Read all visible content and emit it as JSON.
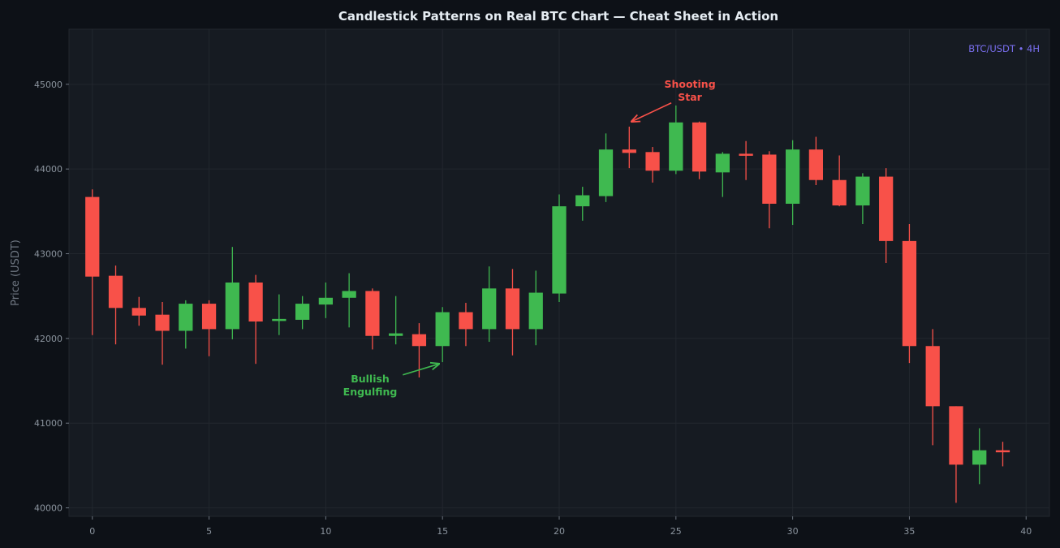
{
  "chart_data": {
    "type": "candlestick",
    "title": "Candlestick Patterns on Real BTC Chart — Cheat Sheet in Action",
    "ylabel": "Price (USDT)",
    "xlabel": "",
    "badge": "BTC/USDT • 4H",
    "xlim": [
      -1,
      41
    ],
    "ylim": [
      39900,
      45650
    ],
    "xticks": [
      0,
      5,
      10,
      15,
      20,
      25,
      30,
      35,
      40
    ],
    "yticks": [
      40000,
      41000,
      42000,
      43000,
      44000,
      45000
    ],
    "grid": true,
    "colors": {
      "up": "#3fb950",
      "down": "#f85149",
      "background": "#161b22",
      "page": "#0d1117",
      "badge": "#7a6ff0"
    },
    "candles": [
      {
        "x": 0,
        "o": 43670,
        "h": 43760,
        "l": 42040,
        "c": 42730
      },
      {
        "x": 1,
        "o": 42740,
        "h": 42860,
        "l": 41930,
        "c": 42360
      },
      {
        "x": 2,
        "o": 42360,
        "h": 42490,
        "l": 42150,
        "c": 42270
      },
      {
        "x": 3,
        "o": 42280,
        "h": 42430,
        "l": 41690,
        "c": 42090
      },
      {
        "x": 4,
        "o": 42090,
        "h": 42450,
        "l": 41880,
        "c": 42410
      },
      {
        "x": 5,
        "o": 42410,
        "h": 42450,
        "l": 41790,
        "c": 42110
      },
      {
        "x": 6,
        "o": 42110,
        "h": 43080,
        "l": 41990,
        "c": 42660
      },
      {
        "x": 7,
        "o": 42660,
        "h": 42750,
        "l": 41700,
        "c": 42200
      },
      {
        "x": 8,
        "o": 42210,
        "h": 42520,
        "l": 42040,
        "c": 42230
      },
      {
        "x": 9,
        "o": 42220,
        "h": 42500,
        "l": 42110,
        "c": 42410
      },
      {
        "x": 10,
        "o": 42400,
        "h": 42660,
        "l": 42240,
        "c": 42480
      },
      {
        "x": 11,
        "o": 42480,
        "h": 42770,
        "l": 42130,
        "c": 42560
      },
      {
        "x": 12,
        "o": 42560,
        "h": 42590,
        "l": 41870,
        "c": 42030
      },
      {
        "x": 13,
        "o": 42030,
        "h": 42500,
        "l": 41930,
        "c": 42060
      },
      {
        "x": 14,
        "o": 42050,
        "h": 42180,
        "l": 41540,
        "c": 41910
      },
      {
        "x": 15,
        "o": 41910,
        "h": 42370,
        "l": 41720,
        "c": 42310
      },
      {
        "x": 16,
        "o": 42310,
        "h": 42420,
        "l": 41910,
        "c": 42110
      },
      {
        "x": 17,
        "o": 42110,
        "h": 42850,
        "l": 41960,
        "c": 42590
      },
      {
        "x": 18,
        "o": 42590,
        "h": 42820,
        "l": 41800,
        "c": 42110
      },
      {
        "x": 19,
        "o": 42110,
        "h": 42800,
        "l": 41920,
        "c": 42540
      },
      {
        "x": 20,
        "o": 42530,
        "h": 43700,
        "l": 42430,
        "c": 43560
      },
      {
        "x": 21,
        "o": 43560,
        "h": 43790,
        "l": 43390,
        "c": 43690
      },
      {
        "x": 22,
        "o": 43680,
        "h": 44420,
        "l": 43610,
        "c": 44230
      },
      {
        "x": 23,
        "o": 44230,
        "h": 44500,
        "l": 44010,
        "c": 44190
      },
      {
        "x": 24,
        "o": 44200,
        "h": 44260,
        "l": 43840,
        "c": 43980
      },
      {
        "x": 25,
        "o": 43980,
        "h": 44750,
        "l": 43940,
        "c": 44550
      },
      {
        "x": 26,
        "o": 44550,
        "h": 44560,
        "l": 43880,
        "c": 43970
      },
      {
        "x": 27,
        "o": 43960,
        "h": 44200,
        "l": 43670,
        "c": 44180
      },
      {
        "x": 28,
        "o": 44180,
        "h": 44330,
        "l": 43870,
        "c": 44170
      },
      {
        "x": 29,
        "o": 44170,
        "h": 44210,
        "l": 43300,
        "c": 43590
      },
      {
        "x": 30,
        "o": 43590,
        "h": 44340,
        "l": 43340,
        "c": 44230
      },
      {
        "x": 31,
        "o": 44230,
        "h": 44380,
        "l": 43810,
        "c": 43870
      },
      {
        "x": 32,
        "o": 43870,
        "h": 44160,
        "l": 43560,
        "c": 43570
      },
      {
        "x": 33,
        "o": 43570,
        "h": 43950,
        "l": 43350,
        "c": 43910
      },
      {
        "x": 34,
        "o": 43910,
        "h": 44010,
        "l": 42890,
        "c": 43150
      },
      {
        "x": 35,
        "o": 43150,
        "h": 43350,
        "l": 41710,
        "c": 41910
      },
      {
        "x": 36,
        "o": 41910,
        "h": 42110,
        "l": 40740,
        "c": 41200
      },
      {
        "x": 37,
        "o": 41200,
        "h": 41200,
        "l": 40060,
        "c": 40510
      },
      {
        "x": 38,
        "o": 40510,
        "h": 40940,
        "l": 40280,
        "c": 40680
      },
      {
        "x": 39,
        "o": 40680,
        "h": 40780,
        "l": 40490,
        "c": 40660
      }
    ],
    "annotations": [
      {
        "text_lines": [
          "Bullish",
          "Engulfing"
        ],
        "color": "#3fb950",
        "text_x": 11.9,
        "text_y": 41480,
        "arrow_from_x": 13.3,
        "arrow_from_y": 41570,
        "arrow_to_x": 14.85,
        "arrow_to_y": 41700,
        "label_anchor": "middle"
      },
      {
        "text_lines": [
          "Shooting",
          "Star"
        ],
        "color": "#f85149",
        "text_x": 25.6,
        "text_y": 44960,
        "arrow_from_x": 24.8,
        "arrow_from_y": 44780,
        "arrow_to_x": 23.1,
        "arrow_to_y": 44560,
        "label_anchor": "middle"
      }
    ]
  }
}
